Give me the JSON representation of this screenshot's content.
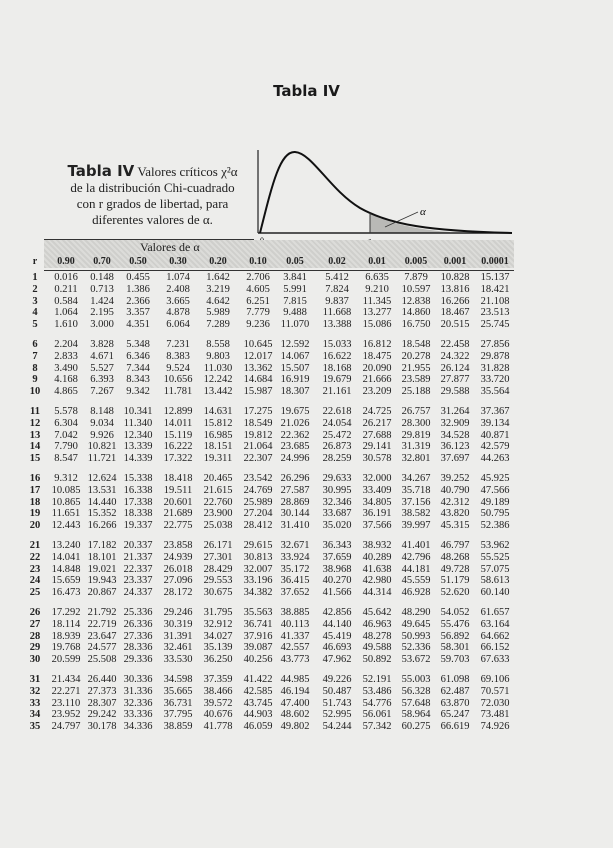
{
  "page_title": "Tabla IV",
  "caption": {
    "tag": "Tabla IV",
    "text_1": "Valores críticos χ²α",
    "text_2": "de la distribución Chi-cuadrado",
    "text_3": "con r grados de libertad, para",
    "text_4": "diferentes valores de α."
  },
  "figure": {
    "origin_label": "0",
    "alpha_label": "α",
    "critical_label": "χ²α"
  },
  "table": {
    "band_label": "Valores de α",
    "row_header": "r",
    "columns": [
      "0.90",
      "0.70",
      "0.50",
      "0.30",
      "0.20",
      "0.10",
      "0.05",
      "0.02",
      "0.01",
      "0.005",
      "0.001",
      "0.0001"
    ],
    "rows": [
      [
        "1",
        "0.016",
        "0.148",
        "0.455",
        "1.074",
        "1.642",
        "2.706",
        "3.841",
        "5.412",
        "6.635",
        "7.879",
        "10.828",
        "15.137"
      ],
      [
        "2",
        "0.211",
        "0.713",
        "1.386",
        "2.408",
        "3.219",
        "4.605",
        "5.991",
        "7.824",
        "9.210",
        "10.597",
        "13.816",
        "18.421"
      ],
      [
        "3",
        "0.584",
        "1.424",
        "2.366",
        "3.665",
        "4.642",
        "6.251",
        "7.815",
        "9.837",
        "11.345",
        "12.838",
        "16.266",
        "21.108"
      ],
      [
        "4",
        "1.064",
        "2.195",
        "3.357",
        "4.878",
        "5.989",
        "7.779",
        "9.488",
        "11.668",
        "13.277",
        "14.860",
        "18.467",
        "23.513"
      ],
      [
        "5",
        "1.610",
        "3.000",
        "4.351",
        "6.064",
        "7.289",
        "9.236",
        "11.070",
        "13.388",
        "15.086",
        "16.750",
        "20.515",
        "25.745"
      ],
      [
        "6",
        "2.204",
        "3.828",
        "5.348",
        "7.231",
        "8.558",
        "10.645",
        "12.592",
        "15.033",
        "16.812",
        "18.548",
        "22.458",
        "27.856"
      ],
      [
        "7",
        "2.833",
        "4.671",
        "6.346",
        "8.383",
        "9.803",
        "12.017",
        "14.067",
        "16.622",
        "18.475",
        "20.278",
        "24.322",
        "29.878"
      ],
      [
        "8",
        "3.490",
        "5.527",
        "7.344",
        "9.524",
        "11.030",
        "13.362",
        "15.507",
        "18.168",
        "20.090",
        "21.955",
        "26.124",
        "31.828"
      ],
      [
        "9",
        "4.168",
        "6.393",
        "8.343",
        "10.656",
        "12.242",
        "14.684",
        "16.919",
        "19.679",
        "21.666",
        "23.589",
        "27.877",
        "33.720"
      ],
      [
        "10",
        "4.865",
        "7.267",
        "9.342",
        "11.781",
        "13.442",
        "15.987",
        "18.307",
        "21.161",
        "23.209",
        "25.188",
        "29.588",
        "35.564"
      ],
      [
        "11",
        "5.578",
        "8.148",
        "10.341",
        "12.899",
        "14.631",
        "17.275",
        "19.675",
        "22.618",
        "24.725",
        "26.757",
        "31.264",
        "37.367"
      ],
      [
        "12",
        "6.304",
        "9.034",
        "11.340",
        "14.011",
        "15.812",
        "18.549",
        "21.026",
        "24.054",
        "26.217",
        "28.300",
        "32.909",
        "39.134"
      ],
      [
        "13",
        "7.042",
        "9.926",
        "12.340",
        "15.119",
        "16.985",
        "19.812",
        "22.362",
        "25.472",
        "27.688",
        "29.819",
        "34.528",
        "40.871"
      ],
      [
        "14",
        "7.790",
        "10.821",
        "13.339",
        "16.222",
        "18.151",
        "21.064",
        "23.685",
        "26.873",
        "29.141",
        "31.319",
        "36.123",
        "42.579"
      ],
      [
        "15",
        "8.547",
        "11.721",
        "14.339",
        "17.322",
        "19.311",
        "22.307",
        "24.996",
        "28.259",
        "30.578",
        "32.801",
        "37.697",
        "44.263"
      ],
      [
        "16",
        "9.312",
        "12.624",
        "15.338",
        "18.418",
        "20.465",
        "23.542",
        "26.296",
        "29.633",
        "32.000",
        "34.267",
        "39.252",
        "45.925"
      ],
      [
        "17",
        "10.085",
        "13.531",
        "16.338",
        "19.511",
        "21.615",
        "24.769",
        "27.587",
        "30.995",
        "33.409",
        "35.718",
        "40.790",
        "47.566"
      ],
      [
        "18",
        "10.865",
        "14.440",
        "17.338",
        "20.601",
        "22.760",
        "25.989",
        "28.869",
        "32.346",
        "34.805",
        "37.156",
        "42.312",
        "49.189"
      ],
      [
        "19",
        "11.651",
        "15.352",
        "18.338",
        "21.689",
        "23.900",
        "27.204",
        "30.144",
        "33.687",
        "36.191",
        "38.582",
        "43.820",
        "50.795"
      ],
      [
        "20",
        "12.443",
        "16.266",
        "19.337",
        "22.775",
        "25.038",
        "28.412",
        "31.410",
        "35.020",
        "37.566",
        "39.997",
        "45.315",
        "52.386"
      ],
      [
        "21",
        "13.240",
        "17.182",
        "20.337",
        "23.858",
        "26.171",
        "29.615",
        "32.671",
        "36.343",
        "38.932",
        "41.401",
        "46.797",
        "53.962"
      ],
      [
        "22",
        "14.041",
        "18.101",
        "21.337",
        "24.939",
        "27.301",
        "30.813",
        "33.924",
        "37.659",
        "40.289",
        "42.796",
        "48.268",
        "55.525"
      ],
      [
        "23",
        "14.848",
        "19.021",
        "22.337",
        "26.018",
        "28.429",
        "32.007",
        "35.172",
        "38.968",
        "41.638",
        "44.181",
        "49.728",
        "57.075"
      ],
      [
        "24",
        "15.659",
        "19.943",
        "23.337",
        "27.096",
        "29.553",
        "33.196",
        "36.415",
        "40.270",
        "42.980",
        "45.559",
        "51.179",
        "58.613"
      ],
      [
        "25",
        "16.473",
        "20.867",
        "24.337",
        "28.172",
        "30.675",
        "34.382",
        "37.652",
        "41.566",
        "44.314",
        "46.928",
        "52.620",
        "60.140"
      ],
      [
        "26",
        "17.292",
        "21.792",
        "25.336",
        "29.246",
        "31.795",
        "35.563",
        "38.885",
        "42.856",
        "45.642",
        "48.290",
        "54.052",
        "61.657"
      ],
      [
        "27",
        "18.114",
        "22.719",
        "26.336",
        "30.319",
        "32.912",
        "36.741",
        "40.113",
        "44.140",
        "46.963",
        "49.645",
        "55.476",
        "63.164"
      ],
      [
        "28",
        "18.939",
        "23.647",
        "27.336",
        "31.391",
        "34.027",
        "37.916",
        "41.337",
        "45.419",
        "48.278",
        "50.993",
        "56.892",
        "64.662"
      ],
      [
        "29",
        "19.768",
        "24.577",
        "28.336",
        "32.461",
        "35.139",
        "39.087",
        "42.557",
        "46.693",
        "49.588",
        "52.336",
        "58.301",
        "66.152"
      ],
      [
        "30",
        "20.599",
        "25.508",
        "29.336",
        "33.530",
        "36.250",
        "40.256",
        "43.773",
        "47.962",
        "50.892",
        "53.672",
        "59.703",
        "67.633"
      ],
      [
        "31",
        "21.434",
        "26.440",
        "30.336",
        "34.598",
        "37.359",
        "41.422",
        "44.985",
        "49.226",
        "52.191",
        "55.003",
        "61.098",
        "69.106"
      ],
      [
        "32",
        "22.271",
        "27.373",
        "31.336",
        "35.665",
        "38.466",
        "42.585",
        "46.194",
        "50.487",
        "53.486",
        "56.328",
        "62.487",
        "70.571"
      ],
      [
        "33",
        "23.110",
        "28.307",
        "32.336",
        "36.731",
        "39.572",
        "43.745",
        "47.400",
        "51.743",
        "54.776",
        "57.648",
        "63.870",
        "72.030"
      ],
      [
        "34",
        "23.952",
        "29.242",
        "33.336",
        "37.795",
        "40.676",
        "44.903",
        "48.602",
        "52.995",
        "56.061",
        "58.964",
        "65.247",
        "73.481"
      ],
      [
        "35",
        "24.797",
        "30.178",
        "34.336",
        "38.859",
        "41.778",
        "46.059",
        "49.802",
        "54.244",
        "57.342",
        "60.275",
        "66.619",
        "74.926"
      ]
    ]
  }
}
